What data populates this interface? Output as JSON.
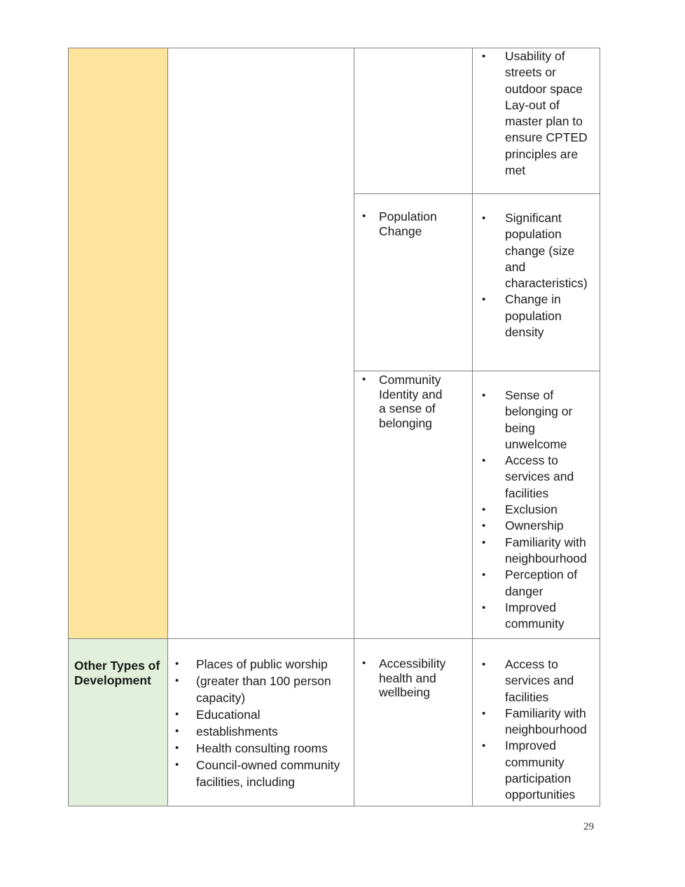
{
  "page_number": "29",
  "colors": {
    "category_yellow": "#fde49d",
    "category_green": "#e2efda",
    "border": "#7f7f7f"
  },
  "rows": [
    {
      "impacts": [],
      "indicators": [
        "Usability of streets or outdoor space Lay-out of master plan to ensure CPTED principles are met"
      ]
    },
    {
      "impacts": [
        "Population Change"
      ],
      "indicators": [
        "Significant population change (size and characteristics)",
        "Change in population density"
      ]
    },
    {
      "impacts": [
        "Community Identity and a sense of belonging"
      ],
      "indicators": [
        "Sense of belonging or being unwelcome",
        "Access to services and facilities",
        "Exclusion",
        "Ownership",
        "Familiarity with neighbourhood",
        "Perception of danger",
        "Improved community"
      ]
    },
    {
      "category": "Other Types of Development",
      "developments": [
        "Places of public worship",
        "(greater than 100 person capacity)",
        "Educational",
        "establishments",
        "Health consulting rooms",
        "Council-owned community facilities, including"
      ],
      "impacts": [
        "Accessibility health and wellbeing"
      ],
      "indicators": [
        "Access to services and facilities",
        "Familiarity with neighbourhood",
        "Improved community participation opportunities"
      ]
    }
  ]
}
